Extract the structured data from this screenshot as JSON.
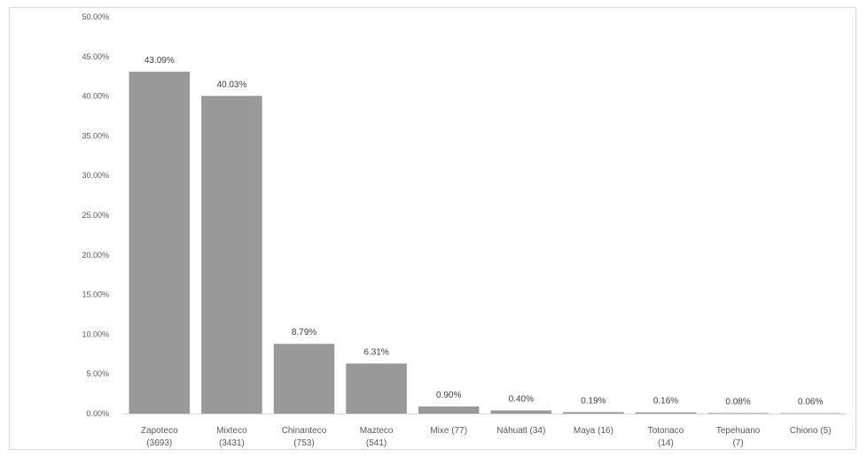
{
  "chart_data": {
    "type": "bar",
    "title": "",
    "xlabel": "",
    "ylabel": "",
    "categories": [
      [
        "Zapoteco",
        "(3693)"
      ],
      [
        "Mixteco",
        "(3431)"
      ],
      [
        "Chinanteco",
        "(753)"
      ],
      [
        "Mazteco",
        "(541)"
      ],
      [
        "Mixe (77)"
      ],
      [
        "Náhuatl (34)"
      ],
      [
        "Maya (16)"
      ],
      [
        "Totonaco",
        "(14)"
      ],
      [
        "Tepehuano",
        "(7)"
      ],
      [
        "Chiono (5)"
      ]
    ],
    "values": [
      43.09,
      40.03,
      8.79,
      6.31,
      0.9,
      0.4,
      0.19,
      0.16,
      0.08,
      0.06
    ],
    "value_labels": [
      "43.09%",
      "40.03%",
      "8.79%",
      "6.31%",
      "0.90%",
      "0.40%",
      "0.19%",
      "0.16%",
      "0.08%",
      "0.06%"
    ],
    "ylim": [
      0,
      50
    ],
    "yticks": [
      "0.00%",
      "5.00%",
      "10.00%",
      "15.00%",
      "20.00%",
      "25.00%",
      "30.00%",
      "35.00%",
      "40.00%",
      "45.00%",
      "50.00%"
    ],
    "grid": false,
    "legend": "none",
    "colors": {
      "bar": "#999999",
      "axis": "#d9d9d9",
      "text": "#595959"
    }
  }
}
